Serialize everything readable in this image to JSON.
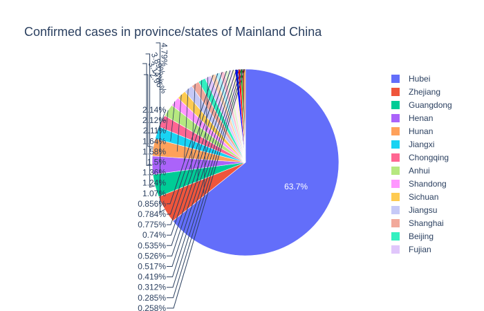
{
  "chart_data": {
    "type": "pie",
    "title": "Confirmed cases in province/states of Mainland China",
    "slices": [
      {
        "label": "Hubei",
        "percent": 63.7,
        "text": "63.7%",
        "color": "#636efa"
      },
      {
        "label": "Zhejiang",
        "percent": 4.79,
        "text": "4.79%",
        "color": "#EF553B"
      },
      {
        "label": "Guangdong",
        "percent": 3.89,
        "text": "3.89%",
        "color": "#00cc96"
      },
      {
        "label": "Henan",
        "percent": 3.14,
        "text": "3.14%",
        "color": "#ab63fa"
      },
      {
        "label": "Hunan",
        "percent": 2.96,
        "text": "2.96%",
        "color": "#FFA15A"
      },
      {
        "label": "Jiangxi",
        "percent": 2.14,
        "text": "2.14%",
        "color": "#19d3f3"
      },
      {
        "label": "Chongqing",
        "percent": 2.12,
        "text": "2.12%",
        "color": "#FF6692"
      },
      {
        "label": "Anhui",
        "percent": 2.11,
        "text": "2.11%",
        "color": "#B6E880"
      },
      {
        "label": "Shandong",
        "percent": 1.64,
        "text": "1.64%",
        "color": "#FF97FF"
      },
      {
        "label": "Sichuan",
        "percent": 1.58,
        "text": "1.58%",
        "color": "#FECB52"
      },
      {
        "label": "Jiangsu",
        "percent": 1.5,
        "text": "1.5%",
        "color": "#c6c9f7"
      },
      {
        "label": "Shanghai",
        "percent": 1.36,
        "text": "1.36%",
        "color": "#f2a99b"
      },
      {
        "label": "Beijing",
        "percent": 1.24,
        "text": "1.24%",
        "color": "#33f0c0"
      },
      {
        "label": "Fujian",
        "percent": 1.07,
        "text": "1.07%",
        "color": "#e0c6fb"
      },
      {
        "label": "",
        "percent": 0.856,
        "text": "0.856%",
        "color": "#ffd2b5"
      },
      {
        "label": "",
        "percent": 0.784,
        "text": "0.784%",
        "color": "#b3eef9"
      },
      {
        "label": "",
        "percent": 0.775,
        "text": "0.775%",
        "color": "#ffc2d4"
      },
      {
        "label": "",
        "percent": 0.74,
        "text": "0.74%",
        "color": "#e2f4cf"
      },
      {
        "label": "",
        "percent": 0.535,
        "text": "0.535%",
        "color": "#ffe0ff"
      },
      {
        "label": "",
        "percent": 0.526,
        "text": "0.526%",
        "color": "#fff0c6"
      },
      {
        "label": "",
        "percent": 0.517,
        "text": "0.517%",
        "color": "#0000ff"
      },
      {
        "label": "",
        "percent": 0.419,
        "text": "0.419%",
        "color": "#ff0000"
      },
      {
        "label": "",
        "percent": 0.312,
        "text": "0.312%",
        "color": "#00a000"
      },
      {
        "label": "",
        "percent": 0.285,
        "text": "0.285%",
        "color": "#8b0000"
      },
      {
        "label": "",
        "percent": 0.258,
        "text": "0.258%",
        "color": "#ff7f00"
      }
    ],
    "legend_entries": [
      "Hubei",
      "Zhejiang",
      "Guangdong",
      "Henan",
      "Hunan",
      "Jiangxi",
      "Chongqing",
      "Anhui",
      "Shandong",
      "Sichuan",
      "Jiangsu",
      "Shanghai",
      "Beijing",
      "Fujian"
    ],
    "legend_position": "right"
  }
}
